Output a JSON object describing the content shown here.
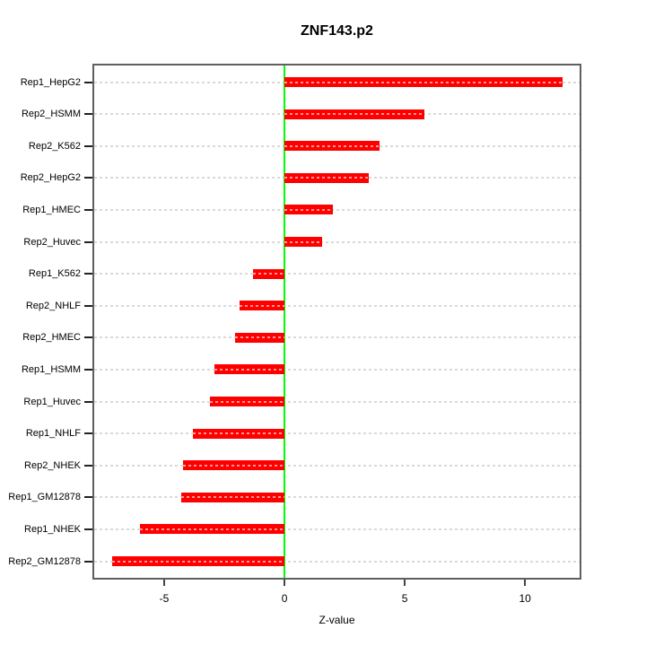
{
  "title": "ZNF143.p2",
  "chart_data": {
    "type": "bar",
    "orientation": "horizontal",
    "title": "ZNF143.p2",
    "xlabel": "Z-value",
    "categories": [
      "Rep1_HepG2",
      "Rep2_HSMM",
      "Rep2_K562",
      "Rep2_HepG2",
      "Rep1_HMEC",
      "Rep2_Huvec",
      "Rep1_K562",
      "Rep2_NHLF",
      "Rep2_HMEC",
      "Rep1_HSMM",
      "Rep1_Huvec",
      "Rep1_NHLF",
      "Rep2_NHEK",
      "Rep1_GM12878",
      "Rep1_NHEK",
      "Rep2_GM12878"
    ],
    "values": [
      11.55,
      5.8,
      3.95,
      3.5,
      2.0,
      1.55,
      -1.3,
      -1.85,
      -2.05,
      -2.9,
      -3.1,
      -3.8,
      -4.2,
      -4.3,
      -6.0,
      -7.15
    ],
    "xlim": [
      -7.91,
      12.27
    ],
    "xticks": [
      -5,
      0,
      5,
      10
    ],
    "xtick_labels": [
      "-5",
      "0",
      "5",
      "10"
    ],
    "grid": "horizontal dashed line per category",
    "legend": "none",
    "colors": {
      "bar": "#FF0000",
      "zero_line": "#00FF00",
      "grid": "#D9D9D9",
      "box": "#5F5F5F",
      "text": "#000000",
      "background": "#FFFFFF"
    }
  }
}
